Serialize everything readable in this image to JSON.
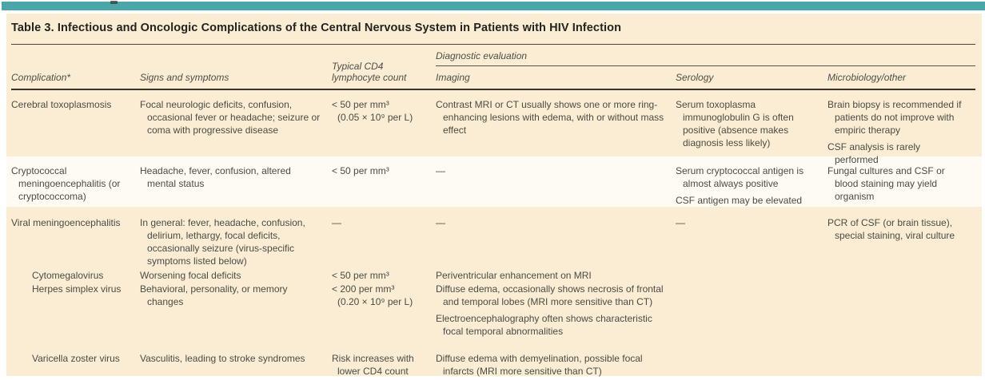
{
  "title": "Table 3. Infectious and Oncologic Complications of the Central Nervous System in Patients with HIV Infection",
  "header": {
    "diagnostic_group": "Diagnostic evaluation",
    "columns": [
      "Complication*",
      "Signs and symptoms",
      "Typical CD4 lymphocyte count",
      "Imaging",
      "Serology",
      "Microbiology/other"
    ]
  },
  "rows": [
    {
      "complication": "Cerebral toxoplasmosis",
      "signs": [
        "Focal neurologic deficits, confusion, occasional fever or headache; seizure or coma with progressive disease"
      ],
      "cd4": [
        "< 50 per mm³",
        "(0.05 × 10⁹ per L)"
      ],
      "imaging": [
        "Contrast MRI or CT usually shows one or more ring-enhancing lesions with edema, with or without mass effect"
      ],
      "serology": [
        "Serum toxoplasma immunoglobulin G is often positive (absence makes diagnosis less likely)"
      ],
      "microbiology": [
        "Brain biopsy is recommended if patients do not improve with empiric therapy",
        "CSF analysis is rarely performed"
      ]
    },
    {
      "complication": "Cryptococcal meningoencephalitis (or cryptococcoma)",
      "signs": [
        "Headache, fever, confusion, altered mental status"
      ],
      "cd4": [
        "< 50 per mm³"
      ],
      "imaging": [
        "—"
      ],
      "serology": [
        "Serum cryptococcal antigen is almost always positive",
        "CSF antigen may be elevated"
      ],
      "microbiology": [
        "Fungal cultures and CSF or blood staining may yield organism"
      ]
    },
    {
      "complication": "Viral meningoencephalitis",
      "signs": [
        "In general: fever, headache, confusion, delirium, lethargy, focal deficits, occasionally seizure (virus-specific symptoms listed below)"
      ],
      "cd4": [
        "—"
      ],
      "imaging": [
        "—"
      ],
      "serology": [
        "—"
      ],
      "microbiology": [
        "PCR of CSF (or brain tissue), special staining, viral culture"
      ]
    },
    {
      "complication": "Cytomegalovirus",
      "signs": [
        "Worsening focal deficits"
      ],
      "cd4": [
        "< 50 per mm³"
      ],
      "imaging": [
        "Periventricular enhancement on MRI"
      ],
      "serology": [],
      "microbiology": []
    },
    {
      "complication": "Herpes simplex virus",
      "signs": [
        "Behavioral, personality, or memory changes"
      ],
      "cd4": [
        "< 200 per mm³",
        "(0.20 × 10⁹ per L)"
      ],
      "imaging": [
        "Diffuse edema, occasionally shows necrosis of frontal and temporal lobes (MRI more sensitive than CT)",
        "Electroencephalography often shows characteristic focal temporal abnormalities"
      ],
      "serology": [],
      "microbiology": []
    },
    {
      "complication": "Varicella zoster virus",
      "signs": [
        "Vasculitis, leading to stroke syndromes"
      ],
      "cd4": [
        "Risk increases with",
        "lower CD4 count"
      ],
      "imaging": [
        "Diffuse edema with demyelination, possible focal infarcts (MRI more sensitive than CT)"
      ],
      "serology": [],
      "microbiology": []
    }
  ],
  "colors": {
    "accent_teal": "#4AA6A9",
    "panel_cream": "#FAEDD4",
    "band_white": "#FDFBF4",
    "rule_dark": "#35352F"
  }
}
